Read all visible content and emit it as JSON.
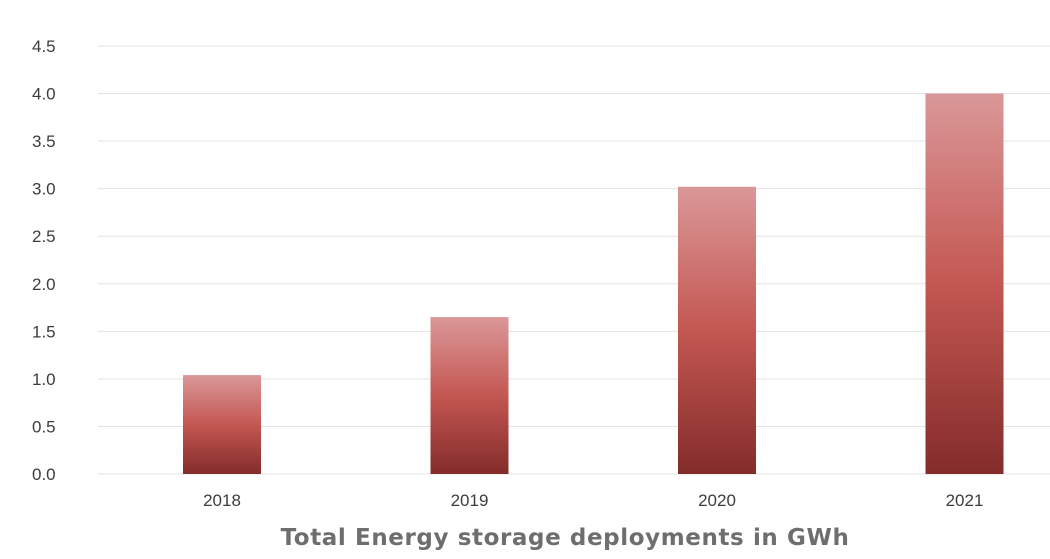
{
  "chart_data": {
    "type": "bar",
    "categories": [
      "2018",
      "2019",
      "2020",
      "2021"
    ],
    "values": [
      1.04,
      1.65,
      3.02,
      4.0
    ],
    "title": "",
    "xlabel": "Total Energy storage deployments in GWh",
    "ylabel": "",
    "ylim": [
      0,
      4.5
    ],
    "yticks": [
      "0.0",
      "0.5",
      "1.0",
      "1.5",
      "2.0",
      "2.5",
      "3.0",
      "3.5",
      "4.0",
      "4.5"
    ],
    "grid": true,
    "legend": "none",
    "colors": {
      "bar_top": "#da9898",
      "bar_mid": "#c45752",
      "bar_bottom": "#832c2a",
      "grid": "#e3e3e3",
      "tick_text": "#3d3d3d",
      "xlabel_text": "#6e6e6e"
    }
  }
}
